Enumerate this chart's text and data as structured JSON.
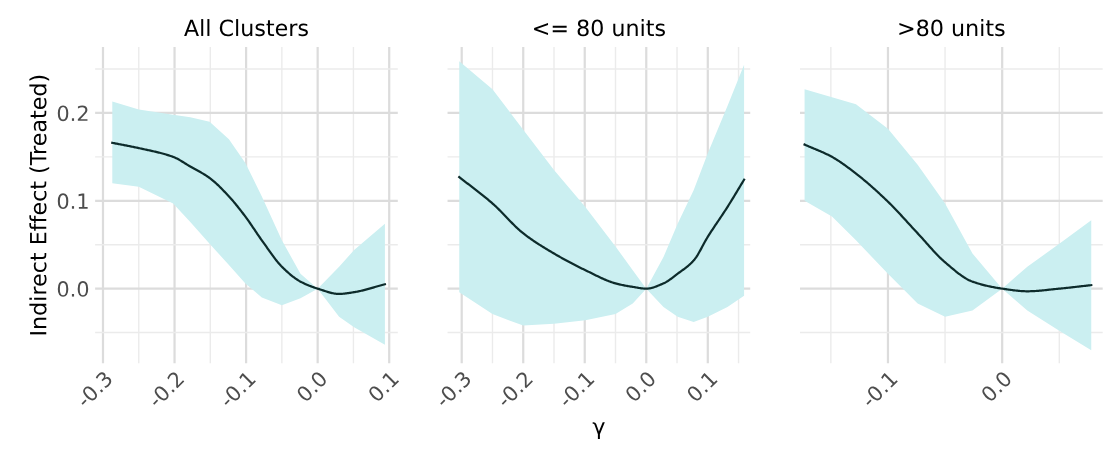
{
  "chart_data": [
    {
      "type": "line",
      "title": "All Clusters",
      "ylabel": "Indirect Effect (Treated)",
      "grid": true,
      "tick_labels": "xy",
      "xlim": [
        -0.311,
        0.112
      ],
      "ylim": [
        -0.085,
        0.275
      ],
      "xticks": [
        -0.3,
        {
          "value": -0.25,
          "label": null
        },
        -0.2,
        {
          "value": -0.15,
          "label": null
        },
        -0.1,
        {
          "value": -0.05,
          "label": null
        },
        {
          "value": 0.0,
          "label": "0.0"
        },
        {
          "value": 0.05,
          "label": null
        },
        0.1
      ],
      "yticks": [
        {
          "value": -0.05,
          "label": null
        },
        {
          "value": 0.0,
          "label": "0.0"
        },
        {
          "value": 0.05,
          "label": null
        },
        {
          "value": 0.1,
          "label": "0.1"
        },
        {
          "value": 0.15,
          "label": null
        },
        {
          "value": 0.2,
          "label": "0.2"
        },
        {
          "value": 0.25,
          "label": null
        }
      ],
      "series": [
        {
          "color": "#0d2b2b",
          "x": [
            -0.287,
            -0.25,
            -0.202,
            -0.178,
            -0.151,
            -0.124,
            -0.101,
            -0.078,
            -0.05,
            -0.024,
            0.0,
            0.03,
            0.051,
            0.094
          ],
          "values": [
            0.166,
            0.16,
            0.15,
            0.139,
            0.126,
            0.105,
            0.082,
            0.055,
            0.025,
            0.008,
            0.0,
            -0.006,
            -0.004,
            0.005
          ],
          "upper": [
            0.213,
            0.204,
            0.198,
            0.195,
            0.19,
            0.17,
            0.143,
            0.105,
            0.055,
            0.017,
            0.0,
            0.025,
            0.044,
            0.074
          ],
          "lower": [
            0.12,
            0.116,
            0.097,
            0.076,
            0.051,
            0.027,
            0.006,
            -0.01,
            -0.019,
            -0.011,
            0.0,
            -0.032,
            -0.044,
            -0.064
          ]
        }
      ]
    },
    {
      "type": "line",
      "title": "<= 80 units",
      "xlabel": "γ",
      "grid": true,
      "tick_labels": "x",
      "xlim": [
        -0.323,
        0.169
      ],
      "ylim": [
        -0.085,
        0.275
      ],
      "xticks": [
        -0.3,
        {
          "value": -0.25,
          "label": null
        },
        -0.2,
        {
          "value": -0.15,
          "label": null
        },
        -0.1,
        {
          "value": -0.05,
          "label": null
        },
        {
          "value": 0.0,
          "label": "0.0"
        },
        {
          "value": 0.05,
          "label": null
        },
        0.1,
        {
          "value": 0.15,
          "label": null
        }
      ],
      "yticks": [
        {
          "value": -0.05,
          "label": null
        },
        {
          "value": 0.0,
          "label": null
        },
        {
          "value": 0.05,
          "label": null
        },
        {
          "value": 0.1,
          "label": null
        },
        {
          "value": 0.15,
          "label": null
        },
        {
          "value": 0.2,
          "label": null
        },
        {
          "value": 0.25,
          "label": null
        }
      ],
      "series": [
        {
          "color": "#0d2b2b",
          "x": [
            -0.304,
            -0.25,
            -0.2,
            -0.15,
            -0.099,
            -0.05,
            -0.022,
            0.0,
            0.028,
            0.051,
            0.077,
            0.1,
            0.132,
            0.159
          ],
          "values": [
            0.127,
            0.097,
            0.063,
            0.04,
            0.021,
            0.006,
            0.002,
            0.0,
            0.006,
            0.017,
            0.032,
            0.059,
            0.093,
            0.124
          ],
          "upper": [
            0.259,
            0.227,
            0.181,
            0.135,
            0.093,
            0.048,
            0.021,
            0.0,
            0.036,
            0.074,
            0.112,
            0.154,
            0.208,
            0.255
          ],
          "lower": [
            -0.004,
            -0.029,
            -0.042,
            -0.04,
            -0.036,
            -0.029,
            -0.017,
            0.0,
            -0.021,
            -0.032,
            -0.038,
            -0.032,
            -0.021,
            -0.008
          ]
        }
      ]
    },
    {
      "type": "line",
      "title": ">80 units",
      "grid": true,
      "tick_labels": "x",
      "xlim": [
        -0.177,
        0.088
      ],
      "ylim": [
        -0.085,
        0.275
      ],
      "xticks": [
        {
          "value": -0.15,
          "label": null
        },
        -0.1,
        {
          "value": -0.05,
          "label": null
        },
        {
          "value": 0.0,
          "label": "0.0"
        },
        {
          "value": 0.05,
          "label": null
        }
      ],
      "yticks": [
        {
          "value": -0.05,
          "label": null
        },
        {
          "value": 0.0,
          "label": null
        },
        {
          "value": 0.05,
          "label": null
        },
        {
          "value": 0.1,
          "label": null
        },
        {
          "value": 0.15,
          "label": null
        },
        {
          "value": 0.2,
          "label": null
        },
        {
          "value": 0.25,
          "label": null
        }
      ],
      "series": [
        {
          "color": "#0d2b2b",
          "x": [
            -0.173,
            -0.149,
            -0.128,
            -0.1,
            -0.074,
            -0.05,
            -0.026,
            0.0,
            0.022,
            0.05,
            0.078
          ],
          "values": [
            0.164,
            0.15,
            0.131,
            0.099,
            0.063,
            0.03,
            0.008,
            0.0,
            -0.003,
            0.0,
            0.004
          ],
          "upper": [
            0.227,
            0.218,
            0.21,
            0.182,
            0.141,
            0.097,
            0.04,
            0.0,
            0.025,
            0.051,
            0.078
          ],
          "lower": [
            0.1,
            0.082,
            0.055,
            0.017,
            -0.017,
            -0.032,
            -0.025,
            0.0,
            -0.025,
            -0.048,
            -0.07
          ]
        }
      ]
    }
  ]
}
